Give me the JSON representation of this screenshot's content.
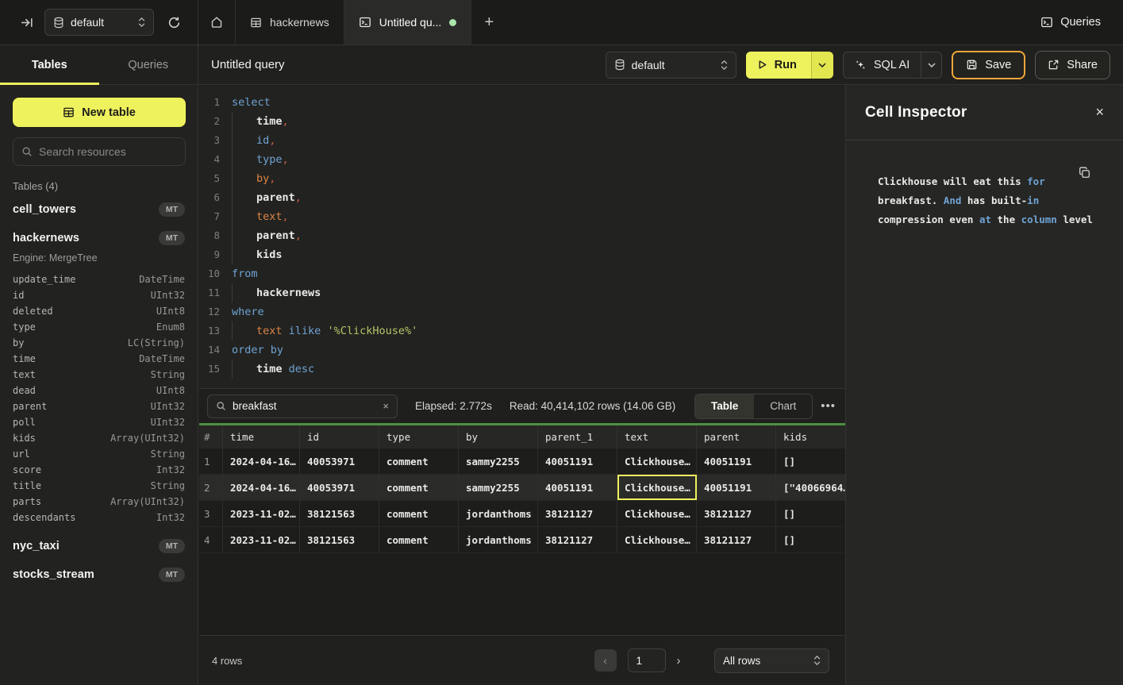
{
  "colors": {
    "accent_yellow": "#eef25c",
    "save_border_amber": "#f0a63a",
    "table_top_green": "#4c9141",
    "keyword_blue": "#6fa3d4",
    "identifier_orange": "#dd8445",
    "string_green": "#b2c468",
    "unsaved_dot_green": "#a9e6ab"
  },
  "topbar": {
    "database_selector": {
      "value": "default"
    },
    "tabs": [
      {
        "label": "",
        "icon": "home"
      },
      {
        "label": "hackernews",
        "icon": "table"
      },
      {
        "label": "Untitled qu...",
        "icon": "terminal",
        "active": true,
        "unsaved": true
      }
    ],
    "queries_label": "Queries"
  },
  "sidebar": {
    "tabs": {
      "tables": "Tables",
      "queries": "Queries"
    },
    "new_table_label": "New table",
    "search_placeholder": "Search resources",
    "section_label": "Tables (4)",
    "tables": [
      {
        "name": "cell_towers",
        "badge": "MT"
      },
      {
        "name": "hackernews",
        "badge": "MT",
        "engine": "Engine: MergeTree",
        "columns": [
          [
            "update_time",
            "DateTime"
          ],
          [
            "id",
            "UInt32"
          ],
          [
            "deleted",
            "UInt8"
          ],
          [
            "type",
            "Enum8"
          ],
          [
            "by",
            "LC(String)"
          ],
          [
            "time",
            "DateTime"
          ],
          [
            "text",
            "String"
          ],
          [
            "dead",
            "UInt8"
          ],
          [
            "parent",
            "UInt32"
          ],
          [
            "poll",
            "UInt32"
          ],
          [
            "kids",
            "Array(UInt32)"
          ],
          [
            "url",
            "String"
          ],
          [
            "score",
            "Int32"
          ],
          [
            "title",
            "String"
          ],
          [
            "parts",
            "Array(UInt32)"
          ],
          [
            "descendants",
            "Int32"
          ]
        ]
      },
      {
        "name": "nyc_taxi",
        "badge": "MT"
      },
      {
        "name": "stocks_stream",
        "badge": "MT"
      }
    ]
  },
  "query_header": {
    "title": "Untitled query",
    "database_selector": {
      "value": "default"
    },
    "run_label": "Run",
    "sql_ai_label": "SQL AI",
    "save_label": "Save",
    "share_label": "Share"
  },
  "editor": {
    "lines": [
      {
        "n": "1",
        "ind": false,
        "tokens": [
          [
            "select",
            "kw"
          ]
        ]
      },
      {
        "n": "2",
        "ind": true,
        "tokens": [
          [
            "time",
            "id"
          ],
          [
            ",",
            "p"
          ]
        ]
      },
      {
        "n": "3",
        "ind": true,
        "tokens": [
          [
            "id",
            "kw"
          ],
          [
            ",",
            "p"
          ]
        ]
      },
      {
        "n": "4",
        "ind": true,
        "tokens": [
          [
            "type",
            "kw"
          ],
          [
            ",",
            "p"
          ]
        ]
      },
      {
        "n": "5",
        "ind": true,
        "tokens": [
          [
            "by",
            "org"
          ],
          [
            ",",
            "p"
          ]
        ]
      },
      {
        "n": "6",
        "ind": true,
        "tokens": [
          [
            "parent",
            "id"
          ],
          [
            ",",
            "p"
          ]
        ]
      },
      {
        "n": "7",
        "ind": true,
        "tokens": [
          [
            "text",
            "org"
          ],
          [
            ",",
            "p"
          ]
        ]
      },
      {
        "n": "8",
        "ind": true,
        "tokens": [
          [
            "parent",
            "id"
          ],
          [
            ",",
            "p"
          ]
        ]
      },
      {
        "n": "9",
        "ind": true,
        "tokens": [
          [
            "kids",
            "id"
          ]
        ]
      },
      {
        "n": "10",
        "ind": false,
        "tokens": [
          [
            "from",
            "kw"
          ]
        ]
      },
      {
        "n": "11",
        "ind": true,
        "tokens": [
          [
            "hackernews",
            "id"
          ]
        ]
      },
      {
        "n": "12",
        "ind": false,
        "tokens": [
          [
            "where",
            "kw"
          ]
        ]
      },
      {
        "n": "13",
        "ind": true,
        "tokens": [
          [
            "text",
            "org"
          ],
          [
            " ",
            "pl"
          ],
          [
            "ilike",
            "kw"
          ],
          [
            " ",
            "pl"
          ],
          [
            "'%ClickHouse%'",
            "str"
          ]
        ]
      },
      {
        "n": "14",
        "ind": false,
        "tokens": [
          [
            "order by",
            "kw"
          ]
        ]
      },
      {
        "n": "15",
        "ind": true,
        "tokens": [
          [
            "time",
            "id"
          ],
          [
            " ",
            "pl"
          ],
          [
            "desc",
            "kw"
          ]
        ]
      }
    ]
  },
  "results_toolbar": {
    "search_value": "breakfast",
    "clear_label": "×",
    "elapsed": "Elapsed: 2.772s",
    "read": "Read: 40,414,102 rows (14.06 GB)",
    "view_table_label": "Table",
    "view_chart_label": "Chart",
    "more_label": "•••"
  },
  "results_table": {
    "columns": [
      "#",
      "time",
      "id",
      "type",
      "by",
      "parent_1",
      "text",
      "parent",
      "kids"
    ],
    "rows": [
      [
        "1",
        "2024-04-16…",
        "40053971",
        "comment",
        "sammy2255",
        "40051191",
        "Clickhouse…",
        "40051191",
        "[]"
      ],
      [
        "2",
        "2024-04-16…",
        "40053971",
        "comment",
        "sammy2255",
        "40051191",
        "Clickhouse…",
        "40051191",
        "[\"40066964…"
      ],
      [
        "3",
        "2023-11-02…",
        "38121563",
        "comment",
        "jordanthoms",
        "38121127",
        "Clickhouse…",
        "38121127",
        "[]"
      ],
      [
        "4",
        "2023-11-02…",
        "38121563",
        "comment",
        "jordanthoms",
        "38121127",
        "Clickhouse…",
        "38121127",
        "[]"
      ]
    ],
    "highlighted_row_index": 1,
    "selected_cell": {
      "row": 1,
      "col": 6
    }
  },
  "footer": {
    "rows_count": "4 rows",
    "prev_label": "‹",
    "page_value": "1",
    "next_label": "›",
    "page_size_value": "All rows"
  },
  "inspector": {
    "title": "Cell Inspector",
    "close_label": "×",
    "lines": [
      [
        [
          "Clickhouse will eat this ",
          "pl"
        ],
        [
          "for",
          "kw"
        ]
      ],
      [
        [
          "breakfast. ",
          "pl"
        ],
        [
          "And",
          "kw"
        ],
        [
          " has built-",
          "pl"
        ],
        [
          "in",
          "kw"
        ]
      ],
      [
        [
          "compression even ",
          "pl"
        ],
        [
          "at",
          "kw"
        ],
        [
          " the ",
          "pl"
        ],
        [
          "column",
          "kw"
        ],
        [
          " level",
          "pl"
        ]
      ]
    ]
  }
}
